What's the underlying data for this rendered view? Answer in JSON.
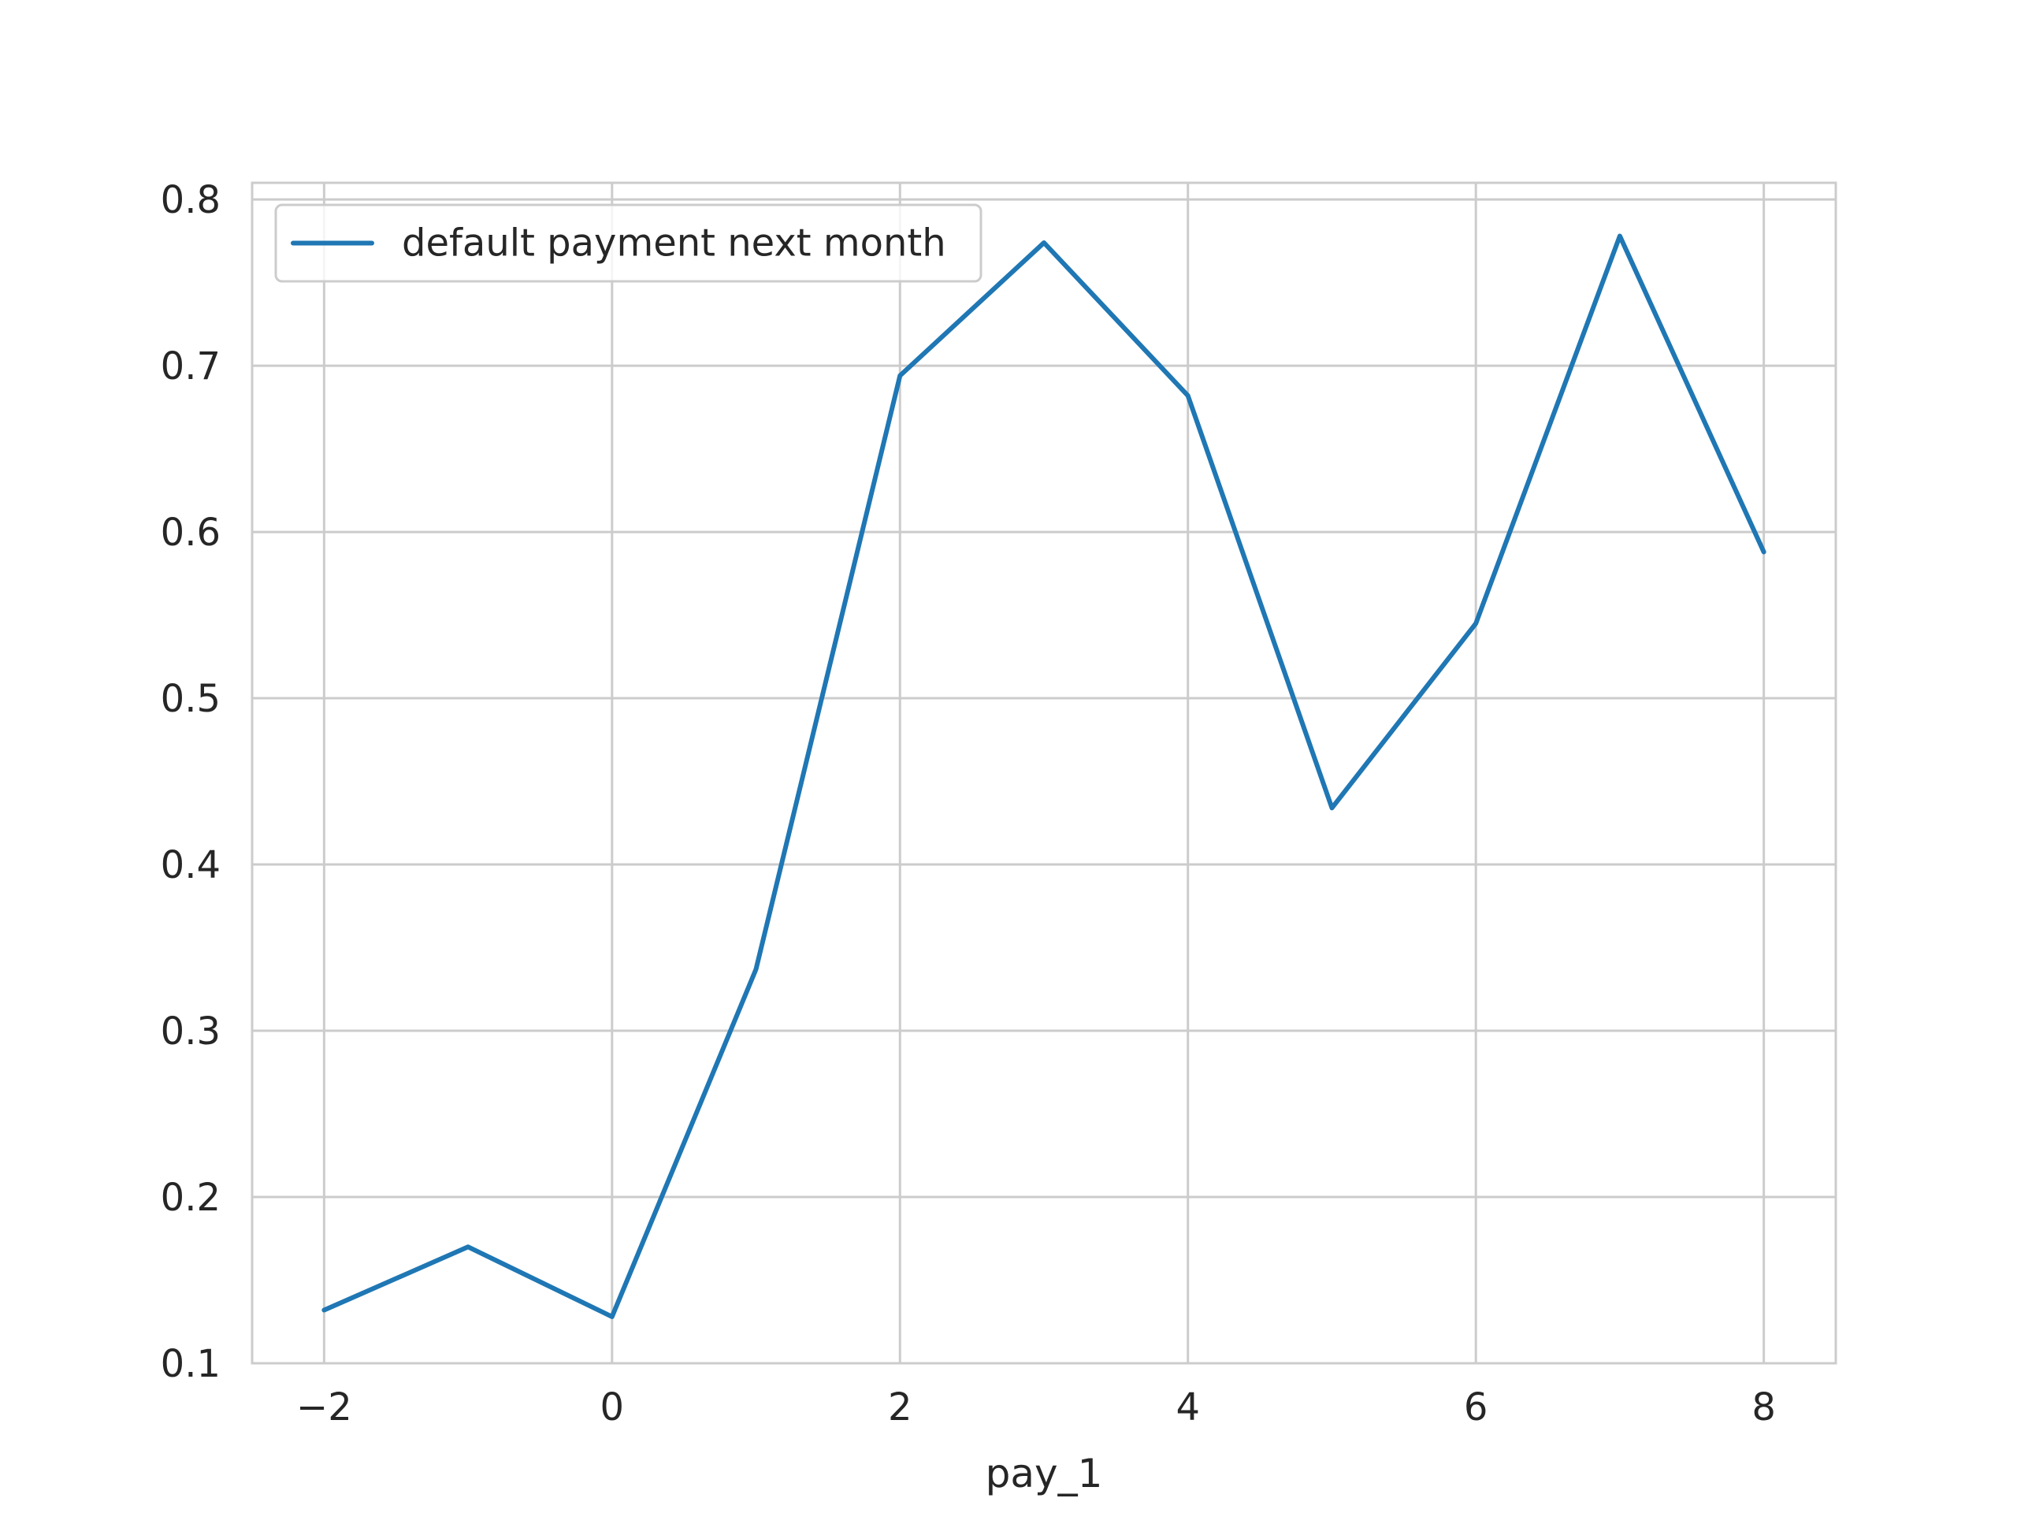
{
  "chart_data": {
    "type": "line",
    "title": "",
    "xlabel": "pay_1",
    "ylabel": "",
    "x": [
      -2,
      -1,
      0,
      1,
      2,
      3,
      4,
      5,
      6,
      7,
      8
    ],
    "series": [
      {
        "name": "default payment next month",
        "color": "#1f77b4",
        "values": [
          0.132,
          0.17,
          0.128,
          0.337,
          0.694,
          0.774,
          0.682,
          0.434,
          0.545,
          0.778,
          0.588
        ]
      }
    ],
    "xlim": [
      -2.5,
      8.5
    ],
    "ylim": [
      0.1,
      0.81
    ],
    "xticks": [
      -2,
      0,
      2,
      4,
      6,
      8
    ],
    "xtick_labels": [
      "−2",
      "0",
      "2",
      "4",
      "6",
      "8"
    ],
    "yticks": [
      0.1,
      0.2,
      0.3,
      0.4,
      0.5,
      0.6,
      0.7,
      0.8
    ],
    "ytick_labels": [
      "0.1",
      "0.2",
      "0.3",
      "0.4",
      "0.5",
      "0.6",
      "0.7",
      "0.8"
    ],
    "grid": true,
    "legend_position": "top-left",
    "colors": {
      "grid": "#cccccc",
      "frame": "#cccccc",
      "text": "#262626",
      "background": "#ffffff"
    }
  }
}
